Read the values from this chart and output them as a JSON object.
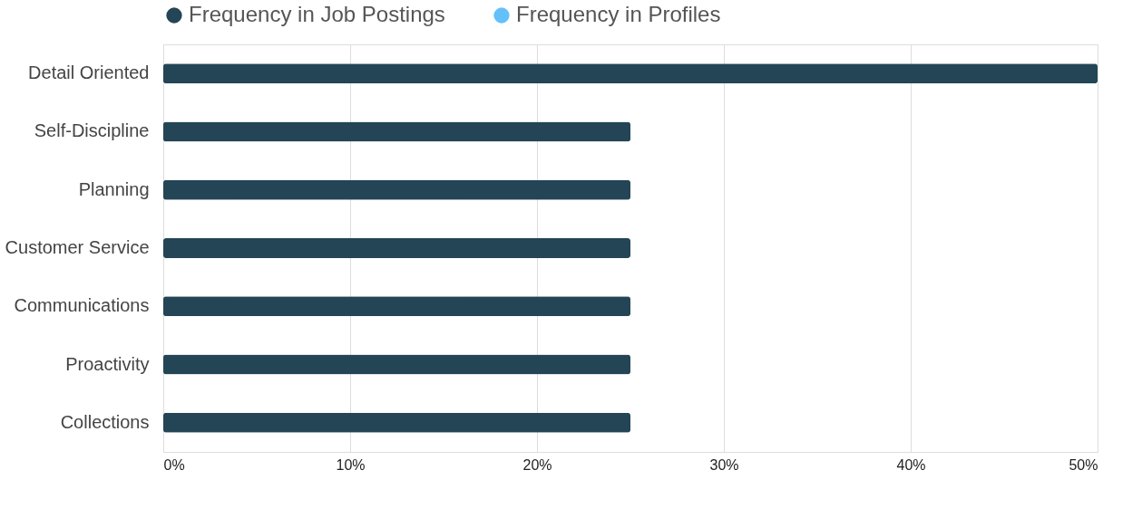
{
  "chart_data": {
    "type": "bar",
    "orientation": "horizontal",
    "categories": [
      "Detail Oriented",
      "Self-Discipline",
      "Planning",
      "Customer Service",
      "Communications",
      "Proactivity",
      "Collections"
    ],
    "series": [
      {
        "name": "Frequency in Job Postings",
        "color": "#234556",
        "values": [
          50,
          25,
          25,
          25,
          25,
          25,
          25
        ]
      },
      {
        "name": "Frequency in Profiles",
        "color": "#64c0f9",
        "values": [
          null,
          null,
          null,
          null,
          null,
          null,
          null
        ]
      }
    ],
    "xlim": [
      0,
      50
    ],
    "xticks": [
      {
        "value": 0,
        "label": "0%"
      },
      {
        "value": 10,
        "label": "10%"
      },
      {
        "value": 20,
        "label": "20%"
      },
      {
        "value": 30,
        "label": "30%"
      },
      {
        "value": 40,
        "label": "40%"
      },
      {
        "value": 50,
        "label": "50%"
      }
    ],
    "grid": "x",
    "legend": "top"
  }
}
